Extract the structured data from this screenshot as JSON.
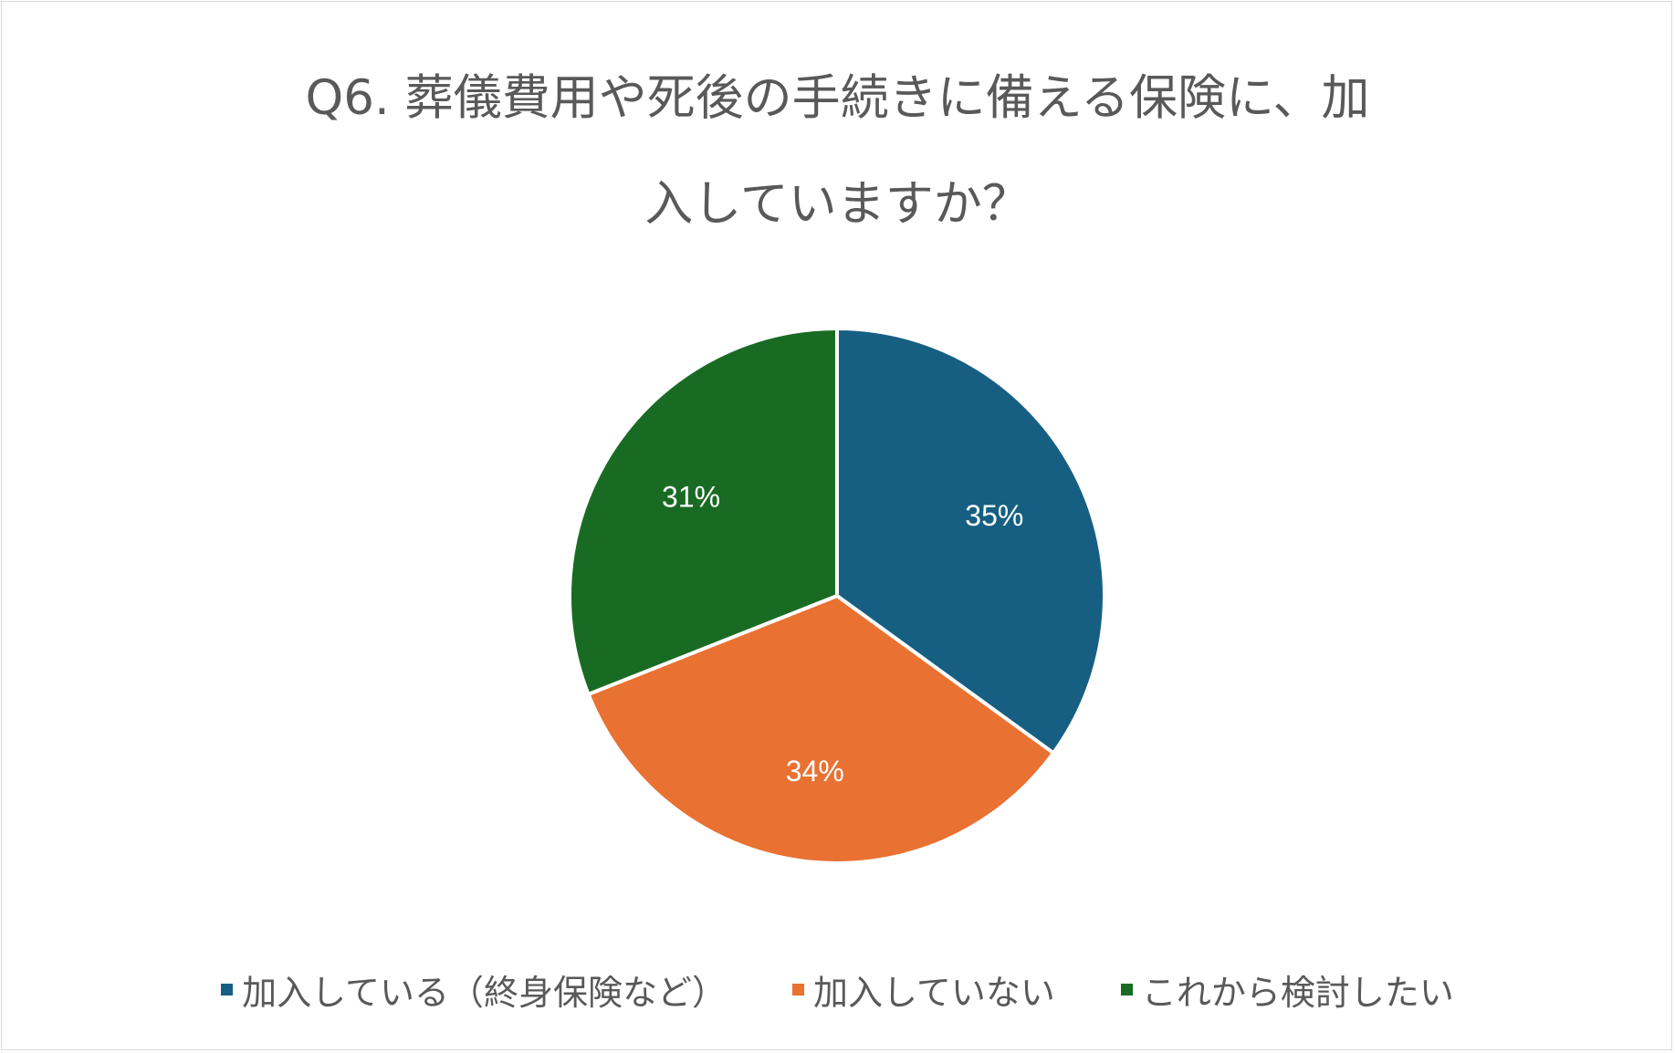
{
  "chart_data": {
    "type": "pie",
    "title_lines": [
      "Q6. 葬儀費用や死後の手続きに備える保険に、加",
      "入していますか？"
    ],
    "categories": [
      "加入している（終身保険など）",
      "加入していない",
      "これから検討したい"
    ],
    "values": [
      35,
      34,
      31
    ],
    "data_labels": [
      "35%",
      "34%",
      "31%"
    ],
    "colors": [
      "#165f82",
      "#e97132",
      "#196b24"
    ],
    "label_color": "#ffffff",
    "start_angle": "12 o'clock, clockwise",
    "legend_position": "bottom"
  }
}
